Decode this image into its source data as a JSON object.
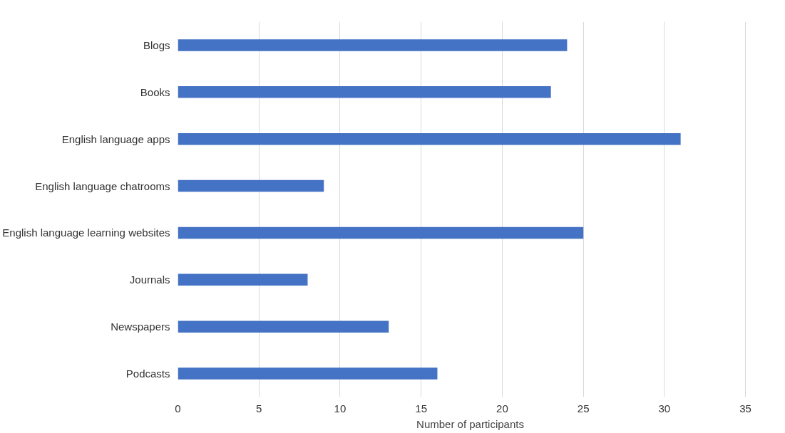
{
  "chart_data": {
    "type": "bar",
    "orientation": "horizontal",
    "xlabel": "Number of participants",
    "categories": [
      "Blogs",
      "Books",
      "English language apps",
      "English language chatrooms",
      "English language learning websites",
      "Journals",
      "Newspapers",
      "Podcasts"
    ],
    "values": [
      24,
      23,
      31,
      9,
      25,
      8,
      13,
      16
    ],
    "color": "#4472c4",
    "xlim": [
      0,
      35
    ],
    "xticks": [
      0,
      5,
      10,
      15,
      20,
      25,
      30,
      35
    ],
    "grid": "x"
  }
}
